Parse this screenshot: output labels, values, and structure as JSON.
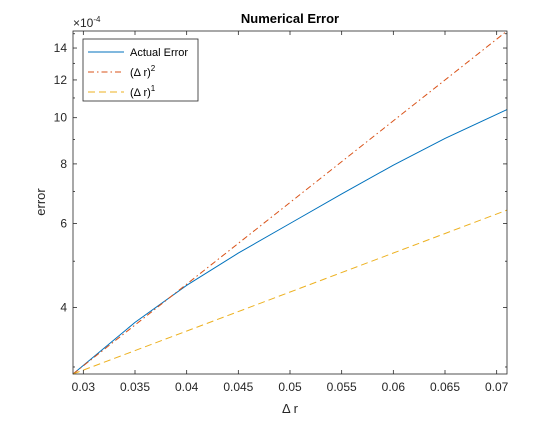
{
  "chart_data": {
    "type": "line",
    "title": "Numerical Error",
    "xlabel": "Δ r",
    "ylabel": "error",
    "y_scale": "log",
    "y_multiplier": "×10",
    "y_multiplier_exp": "-4",
    "xlim": [
      0.029,
      0.071
    ],
    "ylim": [
      2.9,
      15.2
    ],
    "x_ticks": [
      0.03,
      0.035,
      0.04,
      0.045,
      0.05,
      0.055,
      0.06,
      0.065,
      0.07
    ],
    "x_tick_labels": [
      "0.03",
      "0.035",
      "0.04",
      "0.045",
      "0.05",
      "0.055",
      "0.06",
      "0.065",
      "0.07"
    ],
    "y_ticks": [
      4,
      6,
      8,
      10,
      12,
      14
    ],
    "y_tick_labels": [
      "4",
      "6",
      "8",
      "10",
      "12",
      "14"
    ],
    "grid": false,
    "legend_position": "top-left",
    "series": [
      {
        "name": "Actual Error",
        "label_base": "Actual Error",
        "label_sup": "",
        "color": "#0072BD",
        "dash": "solid",
        "x": [
          0.029,
          0.035,
          0.04,
          0.045,
          0.05,
          0.055,
          0.06,
          0.065,
          0.071
        ],
        "y": [
          2.9,
          3.72,
          4.45,
          5.2,
          6.0,
          6.92,
          7.95,
          9.05,
          10.4
        ]
      },
      {
        "name": "(Δ r)^2",
        "label_base": "(Δ r)",
        "label_sup": "2",
        "color": "#D95319",
        "dash": "dashdot",
        "x": [
          0.029,
          0.071
        ],
        "y": [
          2.9,
          15.2
        ]
      },
      {
        "name": "(Δ r)^1",
        "label_base": "(Δ r)",
        "label_sup": "1",
        "color": "#EDB120",
        "dash": "dashed",
        "x": [
          0.029,
          0.071
        ],
        "y": [
          2.9,
          6.4
        ]
      }
    ]
  }
}
